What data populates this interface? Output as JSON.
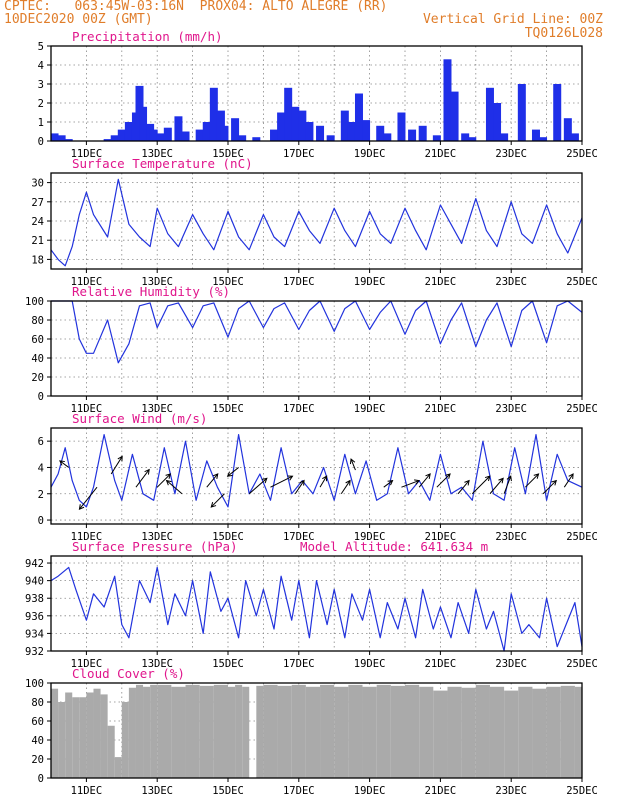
{
  "header": {
    "line1": "CPTEC:   063:45W-03:16N  PROX04: ALTO ALEGRE (RR)",
    "line2": "10DEC2020 00Z (GMT)",
    "grid_note": "Vertical Grid Line: 00Z",
    "run_code": "TQ0126L028"
  },
  "colors": {
    "header": "#e07d2a",
    "title": "#e0168c",
    "series": "#2233dd",
    "bars": "#1f2fe8",
    "cloud": "#aaaaaa",
    "arrows": "#000000"
  },
  "chart_data": [
    {
      "id": "precip",
      "type": "bar",
      "title": "Precipitation (mm/h)",
      "ylim": [
        0,
        5
      ],
      "yticks": [
        0,
        1,
        2,
        3,
        4,
        5
      ],
      "xticks": [
        "11DEC",
        "13DEC",
        "15DEC",
        "17DEC",
        "19DEC",
        "21DEC",
        "23DEC",
        "25DEC"
      ],
      "xlim_days": [
        10,
        25
      ],
      "grid": "dotted",
      "series": {
        "day": [
          10.1,
          10.3,
          10.5,
          11.6,
          11.8,
          12.0,
          12.2,
          12.4,
          12.5,
          12.6,
          12.8,
          12.9,
          13.1,
          13.3,
          13.6,
          13.8,
          14.2,
          14.4,
          14.6,
          14.8,
          14.9,
          15.2,
          15.4,
          15.8,
          16.3,
          16.5,
          16.7,
          16.9,
          17.1,
          17.3,
          17.6,
          17.9,
          18.3,
          18.5,
          18.7,
          18.9,
          19.3,
          19.5,
          19.9,
          20.2,
          20.5,
          20.9,
          21.2,
          21.4,
          21.7,
          21.9,
          22.4,
          22.6,
          22.8,
          23.3,
          23.7,
          23.9,
          24.3,
          24.6,
          24.8
        ],
        "value": [
          0.4,
          0.3,
          0.1,
          0.1,
          0.3,
          0.6,
          1.0,
          1.5,
          2.9,
          1.8,
          0.9,
          0.6,
          0.4,
          0.7,
          1.3,
          0.5,
          0.6,
          1.0,
          2.8,
          1.6,
          0.8,
          1.2,
          0.3,
          0.2,
          0.6,
          1.5,
          2.8,
          1.8,
          1.6,
          1.0,
          0.8,
          0.3,
          1.6,
          1.0,
          2.5,
          1.1,
          0.8,
          0.4,
          1.5,
          0.6,
          0.8,
          0.3,
          4.3,
          2.6,
          0.4,
          0.2,
          2.8,
          2.0,
          0.4,
          3.0,
          0.6,
          0.2,
          3.0,
          1.2,
          0.4
        ]
      }
    },
    {
      "id": "temp",
      "type": "line",
      "title": "Surface Temperature (nC)",
      "ylim": [
        16.5,
        31.5
      ],
      "yticks": [
        18,
        21,
        24,
        27,
        30
      ],
      "xticks": [
        "11DEC",
        "13DEC",
        "15DEC",
        "17DEC",
        "19DEC",
        "21DEC",
        "23DEC",
        "25DEC"
      ],
      "xlim_days": [
        10,
        25
      ],
      "grid": "dotted",
      "series": {
        "day": [
          10.0,
          10.2,
          10.4,
          10.6,
          10.8,
          11.0,
          11.2,
          11.6,
          11.9,
          12.2,
          12.5,
          12.8,
          13.0,
          13.3,
          13.6,
          14.0,
          14.3,
          14.6,
          15.0,
          15.3,
          15.6,
          16.0,
          16.3,
          16.6,
          17.0,
          17.3,
          17.6,
          18.0,
          18.3,
          18.6,
          19.0,
          19.3,
          19.6,
          20.0,
          20.3,
          20.6,
          21.0,
          21.3,
          21.6,
          22.0,
          22.3,
          22.6,
          23.0,
          23.3,
          23.6,
          24.0,
          24.3,
          24.6,
          25.0
        ],
        "value": [
          19.5,
          18.0,
          17.0,
          20.0,
          25.0,
          28.5,
          25.0,
          21.5,
          30.5,
          23.5,
          21.5,
          20.0,
          26.0,
          22.0,
          20.0,
          25.0,
          22.0,
          19.5,
          25.5,
          21.5,
          19.5,
          25.0,
          21.5,
          20.0,
          25.5,
          22.5,
          20.5,
          26.0,
          22.5,
          20.0,
          25.5,
          22.0,
          20.5,
          26.0,
          22.5,
          19.5,
          26.5,
          23.5,
          20.5,
          27.5,
          22.5,
          20.0,
          27.0,
          22.0,
          20.5,
          26.5,
          22.0,
          19.0,
          24.5
        ]
      }
    },
    {
      "id": "rh",
      "type": "line",
      "title": "Relative Humidity (%)",
      "ylim": [
        0,
        100
      ],
      "yticks": [
        0,
        20,
        40,
        60,
        80,
        100
      ],
      "xticks": [
        "11DEC",
        "13DEC",
        "15DEC",
        "17DEC",
        "19DEC",
        "21DEC",
        "23DEC",
        "25DEC"
      ],
      "xlim_days": [
        10,
        25
      ],
      "grid": "dotted",
      "series": {
        "day": [
          10.0,
          10.3,
          10.6,
          10.8,
          11.0,
          11.2,
          11.6,
          11.9,
          12.2,
          12.5,
          12.8,
          13.0,
          13.3,
          13.6,
          14.0,
          14.3,
          14.6,
          15.0,
          15.3,
          15.6,
          16.0,
          16.3,
          16.6,
          17.0,
          17.3,
          17.6,
          18.0,
          18.3,
          18.6,
          19.0,
          19.3,
          19.6,
          20.0,
          20.3,
          20.6,
          21.0,
          21.3,
          21.6,
          22.0,
          22.3,
          22.6,
          23.0,
          23.3,
          23.6,
          24.0,
          24.3,
          24.6,
          25.0
        ],
        "value": [
          100,
          100,
          100,
          60,
          45,
          45,
          80,
          35,
          55,
          95,
          98,
          72,
          95,
          98,
          72,
          95,
          98,
          62,
          92,
          100,
          72,
          92,
          98,
          70,
          90,
          100,
          68,
          92,
          100,
          70,
          88,
          100,
          65,
          90,
          100,
          55,
          80,
          98,
          52,
          80,
          98,
          52,
          90,
          100,
          56,
          95,
          100,
          88
        ]
      }
    },
    {
      "id": "wind",
      "type": "line",
      "title": "Surface Wind (m/s)",
      "ylim": [
        -0.3,
        7
      ],
      "yticks": [
        0,
        2,
        4,
        6
      ],
      "xticks": [
        "11DEC",
        "13DEC",
        "15DEC",
        "17DEC",
        "19DEC",
        "21DEC",
        "23DEC",
        "25DEC"
      ],
      "xlim_days": [
        10,
        25
      ],
      "grid": "dotted",
      "series": {
        "day": [
          10.0,
          10.2,
          10.4,
          10.6,
          10.8,
          11.0,
          11.2,
          11.5,
          11.8,
          12.0,
          12.3,
          12.6,
          12.9,
          13.2,
          13.5,
          13.8,
          14.1,
          14.4,
          14.7,
          15.0,
          15.3,
          15.6,
          15.9,
          16.2,
          16.5,
          16.8,
          17.1,
          17.4,
          17.7,
          18.0,
          18.3,
          18.6,
          18.9,
          19.2,
          19.5,
          19.8,
          20.1,
          20.4,
          20.7,
          21.0,
          21.3,
          21.6,
          21.9,
          22.2,
          22.5,
          22.8,
          23.1,
          23.4,
          23.7,
          24.0,
          24.3,
          24.6,
          25.0
        ],
        "value": [
          2.5,
          3.5,
          5.5,
          3.0,
          1.5,
          1.0,
          2.5,
          6.5,
          3.0,
          1.5,
          5.0,
          2.0,
          1.5,
          5.5,
          2.0,
          6.0,
          1.5,
          4.5,
          2.5,
          1.0,
          6.5,
          2.0,
          3.5,
          1.5,
          5.5,
          2.0,
          3.0,
          2.0,
          4.0,
          1.5,
          5.0,
          2.0,
          4.5,
          1.5,
          2.0,
          5.5,
          2.0,
          3.0,
          1.5,
          5.0,
          2.0,
          2.5,
          1.5,
          6.0,
          2.0,
          1.5,
          5.5,
          2.0,
          6.5,
          1.5,
          5.0,
          3.0,
          2.5
        ],
        "arrows": [
          [
            10.5,
            4.0,
            -0.4,
            0.3
          ],
          [
            11.3,
            2.5,
            -0.8,
            -1.0
          ],
          [
            11.7,
            3.5,
            0.5,
            0.8
          ],
          [
            12.4,
            2.5,
            0.6,
            0.8
          ],
          [
            13.0,
            2.5,
            0.6,
            0.6
          ],
          [
            13.7,
            2.0,
            -0.7,
            0.6
          ],
          [
            14.4,
            2.5,
            0.5,
            0.6
          ],
          [
            14.9,
            2.0,
            -0.6,
            -0.6
          ],
          [
            15.3,
            4.0,
            -0.5,
            -0.4
          ],
          [
            15.6,
            2.0,
            0.8,
            0.7
          ],
          [
            16.2,
            2.5,
            1.0,
            0.5
          ],
          [
            16.9,
            2.0,
            0.4,
            0.6
          ],
          [
            17.6,
            2.5,
            0.3,
            0.5
          ],
          [
            18.2,
            2.0,
            0.4,
            0.6
          ],
          [
            18.6,
            3.8,
            -0.2,
            0.5
          ],
          [
            19.4,
            2.5,
            0.4,
            0.3
          ],
          [
            19.9,
            2.5,
            0.8,
            0.3
          ],
          [
            20.4,
            2.5,
            0.5,
            0.6
          ],
          [
            20.9,
            2.5,
            0.6,
            0.6
          ],
          [
            21.5,
            2.0,
            0.5,
            0.6
          ],
          [
            21.9,
            2.0,
            0.8,
            0.8
          ],
          [
            22.4,
            2.0,
            0.6,
            0.7
          ],
          [
            22.8,
            2.0,
            0.3,
            0.8
          ],
          [
            23.4,
            2.5,
            0.6,
            0.6
          ],
          [
            23.9,
            2.0,
            0.6,
            0.6
          ],
          [
            24.5,
            2.5,
            0.4,
            0.6
          ]
        ]
      }
    },
    {
      "id": "pres",
      "type": "line",
      "title": "Surface Pressure (hPa)",
      "subtitle": "Model Altitude: 641.634 m",
      "ylim": [
        932,
        942.8
      ],
      "yticks": [
        932,
        934,
        936,
        938,
        940,
        942
      ],
      "xticks": [
        "11DEC",
        "13DEC",
        "15DEC",
        "17DEC",
        "19DEC",
        "21DEC",
        "23DEC",
        "25DEC"
      ],
      "xlim_days": [
        10,
        25
      ],
      "grid": "dotted",
      "series": {
        "day": [
          10.0,
          10.2,
          10.5,
          10.7,
          11.0,
          11.2,
          11.5,
          11.8,
          12.0,
          12.2,
          12.5,
          12.8,
          13.0,
          13.3,
          13.5,
          13.8,
          14.0,
          14.3,
          14.5,
          14.8,
          15.0,
          15.3,
          15.5,
          15.8,
          16.0,
          16.3,
          16.5,
          16.8,
          17.0,
          17.3,
          17.5,
          17.8,
          18.0,
          18.3,
          18.5,
          18.8,
          19.0,
          19.3,
          19.5,
          19.8,
          20.0,
          20.3,
          20.5,
          20.8,
          21.0,
          21.3,
          21.5,
          21.8,
          22.0,
          22.3,
          22.5,
          22.8,
          23.0,
          23.3,
          23.5,
          23.8,
          24.0,
          24.3,
          24.5,
          24.8,
          25.0
        ],
        "value": [
          940.0,
          940.5,
          941.5,
          939.0,
          935.5,
          938.5,
          937.0,
          940.5,
          935.0,
          933.5,
          940.0,
          937.5,
          941.5,
          935.0,
          938.5,
          936.0,
          940.0,
          934.0,
          941.0,
          936.5,
          938.0,
          933.5,
          940.0,
          936.0,
          939.0,
          934.5,
          940.5,
          935.5,
          940.0,
          933.5,
          940.0,
          935.0,
          939.0,
          933.5,
          938.5,
          935.5,
          939.0,
          933.5,
          937.5,
          934.5,
          938.0,
          933.5,
          939.0,
          934.5,
          937.0,
          933.5,
          937.5,
          934.0,
          939.0,
          934.5,
          936.5,
          932.0,
          938.5,
          934.0,
          935.0,
          933.5,
          938.0,
          932.5,
          934.5,
          937.5,
          932.5
        ]
      }
    },
    {
      "id": "cloud",
      "type": "bar",
      "title": "Cloud Cover (%)",
      "ylim": [
        0,
        100
      ],
      "yticks": [
        0,
        20,
        40,
        60,
        80,
        100
      ],
      "xticks": [
        "11DEC",
        "13DEC",
        "15DEC",
        "17DEC",
        "19DEC",
        "21DEC",
        "23DEC",
        "25DEC"
      ],
      "xlim_days": [
        10,
        25
      ],
      "grid": "dotted",
      "series": {
        "day": [
          10.0,
          10.2,
          10.4,
          10.6,
          10.8,
          11.0,
          11.2,
          11.4,
          11.6,
          11.8,
          12.0,
          12.2,
          12.4,
          12.6,
          12.8,
          13.0,
          13.4,
          13.8,
          14.2,
          14.6,
          15.0,
          15.2,
          15.4,
          15.6,
          15.8,
          16.0,
          16.4,
          16.8,
          17.2,
          17.6,
          18.0,
          18.4,
          18.8,
          19.2,
          19.6,
          20.0,
          20.4,
          20.8,
          21.2,
          21.6,
          22.0,
          22.4,
          22.8,
          23.2,
          23.6,
          24.0,
          24.4,
          24.8
        ],
        "value": [
          94,
          80,
          90,
          85,
          85,
          90,
          94,
          88,
          55,
          22,
          80,
          95,
          98,
          96,
          98,
          98,
          96,
          98,
          97,
          98,
          96,
          98,
          96,
          0,
          97,
          98,
          97,
          98,
          96,
          98,
          96,
          98,
          96,
          98,
          97,
          98,
          96,
          92,
          96,
          95,
          98,
          96,
          92,
          96,
          94,
          96,
          97,
          96
        ]
      }
    }
  ]
}
